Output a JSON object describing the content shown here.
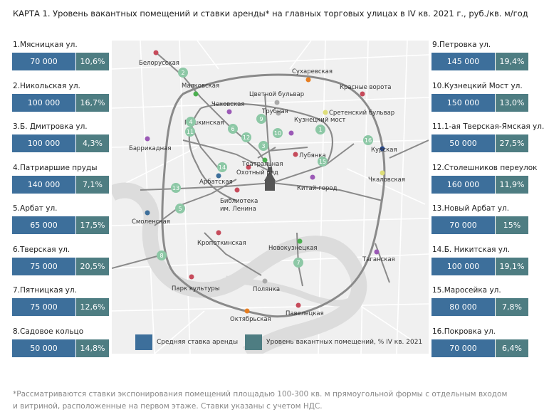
{
  "title": "КАРТА 1. Уровень вакантных помещений и ставки аренды* на главных торговых улицах в IV кв. 2021 г., руб./кв. м/год",
  "left_streets": [
    {
      "name": "1.Мясницкая ул.",
      "rate": "70 000",
      "vacancy": "10,6%"
    },
    {
      "name": "2.Никольская ул.",
      "rate": "100 000",
      "vacancy": "16,7%"
    },
    {
      "name": "3.Б. Дмитровка ул.",
      "rate": "100 000",
      "vacancy": "4,3%"
    },
    {
      "name": "4.Патриаршие пруды",
      "rate": "140 000",
      "vacancy": "7,1%"
    },
    {
      "name": "5.Арбат ул.",
      "rate": "65 000",
      "vacancy": "17,5%"
    },
    {
      "name": "6.Тверская ул.",
      "rate": "75 000",
      "vacancy": "20,5%"
    },
    {
      "name": "7.Пятницкая ул.",
      "rate": "75 000",
      "vacancy": "12,6%"
    },
    {
      "name": "8.Садовое кольцо",
      "rate": "50 000",
      "vacancy": "14,8%"
    }
  ],
  "right_streets": [
    {
      "name": "9.Петровка ул.",
      "rate": "145 000",
      "vacancy": "19,4%"
    },
    {
      "name": "10.Кузнецкий Мост ул.",
      "rate": "150 000",
      "vacancy": "13,0%"
    },
    {
      "name": "11.1-ая Тверская-Ямская ул.",
      "rate": "50 000",
      "vacancy": "27,5%"
    },
    {
      "name": "12.Столешников переулок",
      "rate": "160 000",
      "vacancy": "11,9%"
    },
    {
      "name": "13.Новый Арбат ул.",
      "rate": "70 000",
      "vacancy": "15%"
    },
    {
      "name": "14.Б. Никитская ул.",
      "rate": "100 000",
      "vacancy": "19,1%"
    },
    {
      "name": "15.Маросейка ул.",
      "rate": "80 000",
      "vacancy": "7,8%"
    },
    {
      "name": "16.Покровка ул.",
      "rate": "70 000",
      "vacancy": "6,4%"
    }
  ],
  "map": {
    "stations": {
      "belorusskaya": "Белорусская",
      "mayakovskaya": "Маяковская",
      "sukharevskaya": "Сухаревская",
      "krasnye_vorota": "Красные ворота",
      "tsvetnoy_bulvar": "Цветной бульвар",
      "chekhovskaya": "Чеховская",
      "trubnaya": "Трубная",
      "sretensky_bulvar": "Сретенский бульвар",
      "pushkinskaya": "Пушкинская",
      "kuznetsky_most": "Кузнецкий мост",
      "barrikadnaya": "Баррикадная",
      "lubyanka": "Лубянка",
      "kurskaya": "Курская",
      "teatralnaya": "Театральная",
      "okhotny_ryad": "Охотный ряд",
      "arbatskaya": "Арбатская",
      "kitay_gorod": "Китай-город",
      "chkalovskaya": "Чкаловская",
      "biblioteka": "Библиотека",
      "biblioteka2": "им. Ленина",
      "smolenskaya": "Смоленская",
      "kropotkinskaya": "Кропоткинская",
      "novokuznetskaya": "Новокузнецкая",
      "taganskaya": "Таганская",
      "park_kultury": "Парк культуры",
      "polyanka": "Полянка",
      "oktyabrskaya": "Октябрьская",
      "paveletskaya": "Павелецкая"
    },
    "street_markers": [
      "1",
      "2",
      "3",
      "4",
      "5",
      "6",
      "7",
      "8",
      "9",
      "10",
      "11",
      "12",
      "13",
      "14",
      "15",
      "16"
    ]
  },
  "legend": {
    "rate_label": "Средняя ставка аренды",
    "vacancy_label": "Уровень вакантных помещений, % IV кв. 2021"
  },
  "colors": {
    "rate": "#3d6f9b",
    "vacancy": "#4e7d82",
    "marker": "#8dc8a6",
    "road": "#8a8a8a"
  },
  "footnote_line1": "*Рассматриваются ставки экспонирования помещений площадью 100-300 кв. м прямоугольной формы с отдельным входом",
  "footnote_line2": "и витриной, расположенные на первом этаже. Ставки указаны с учетом НДС."
}
